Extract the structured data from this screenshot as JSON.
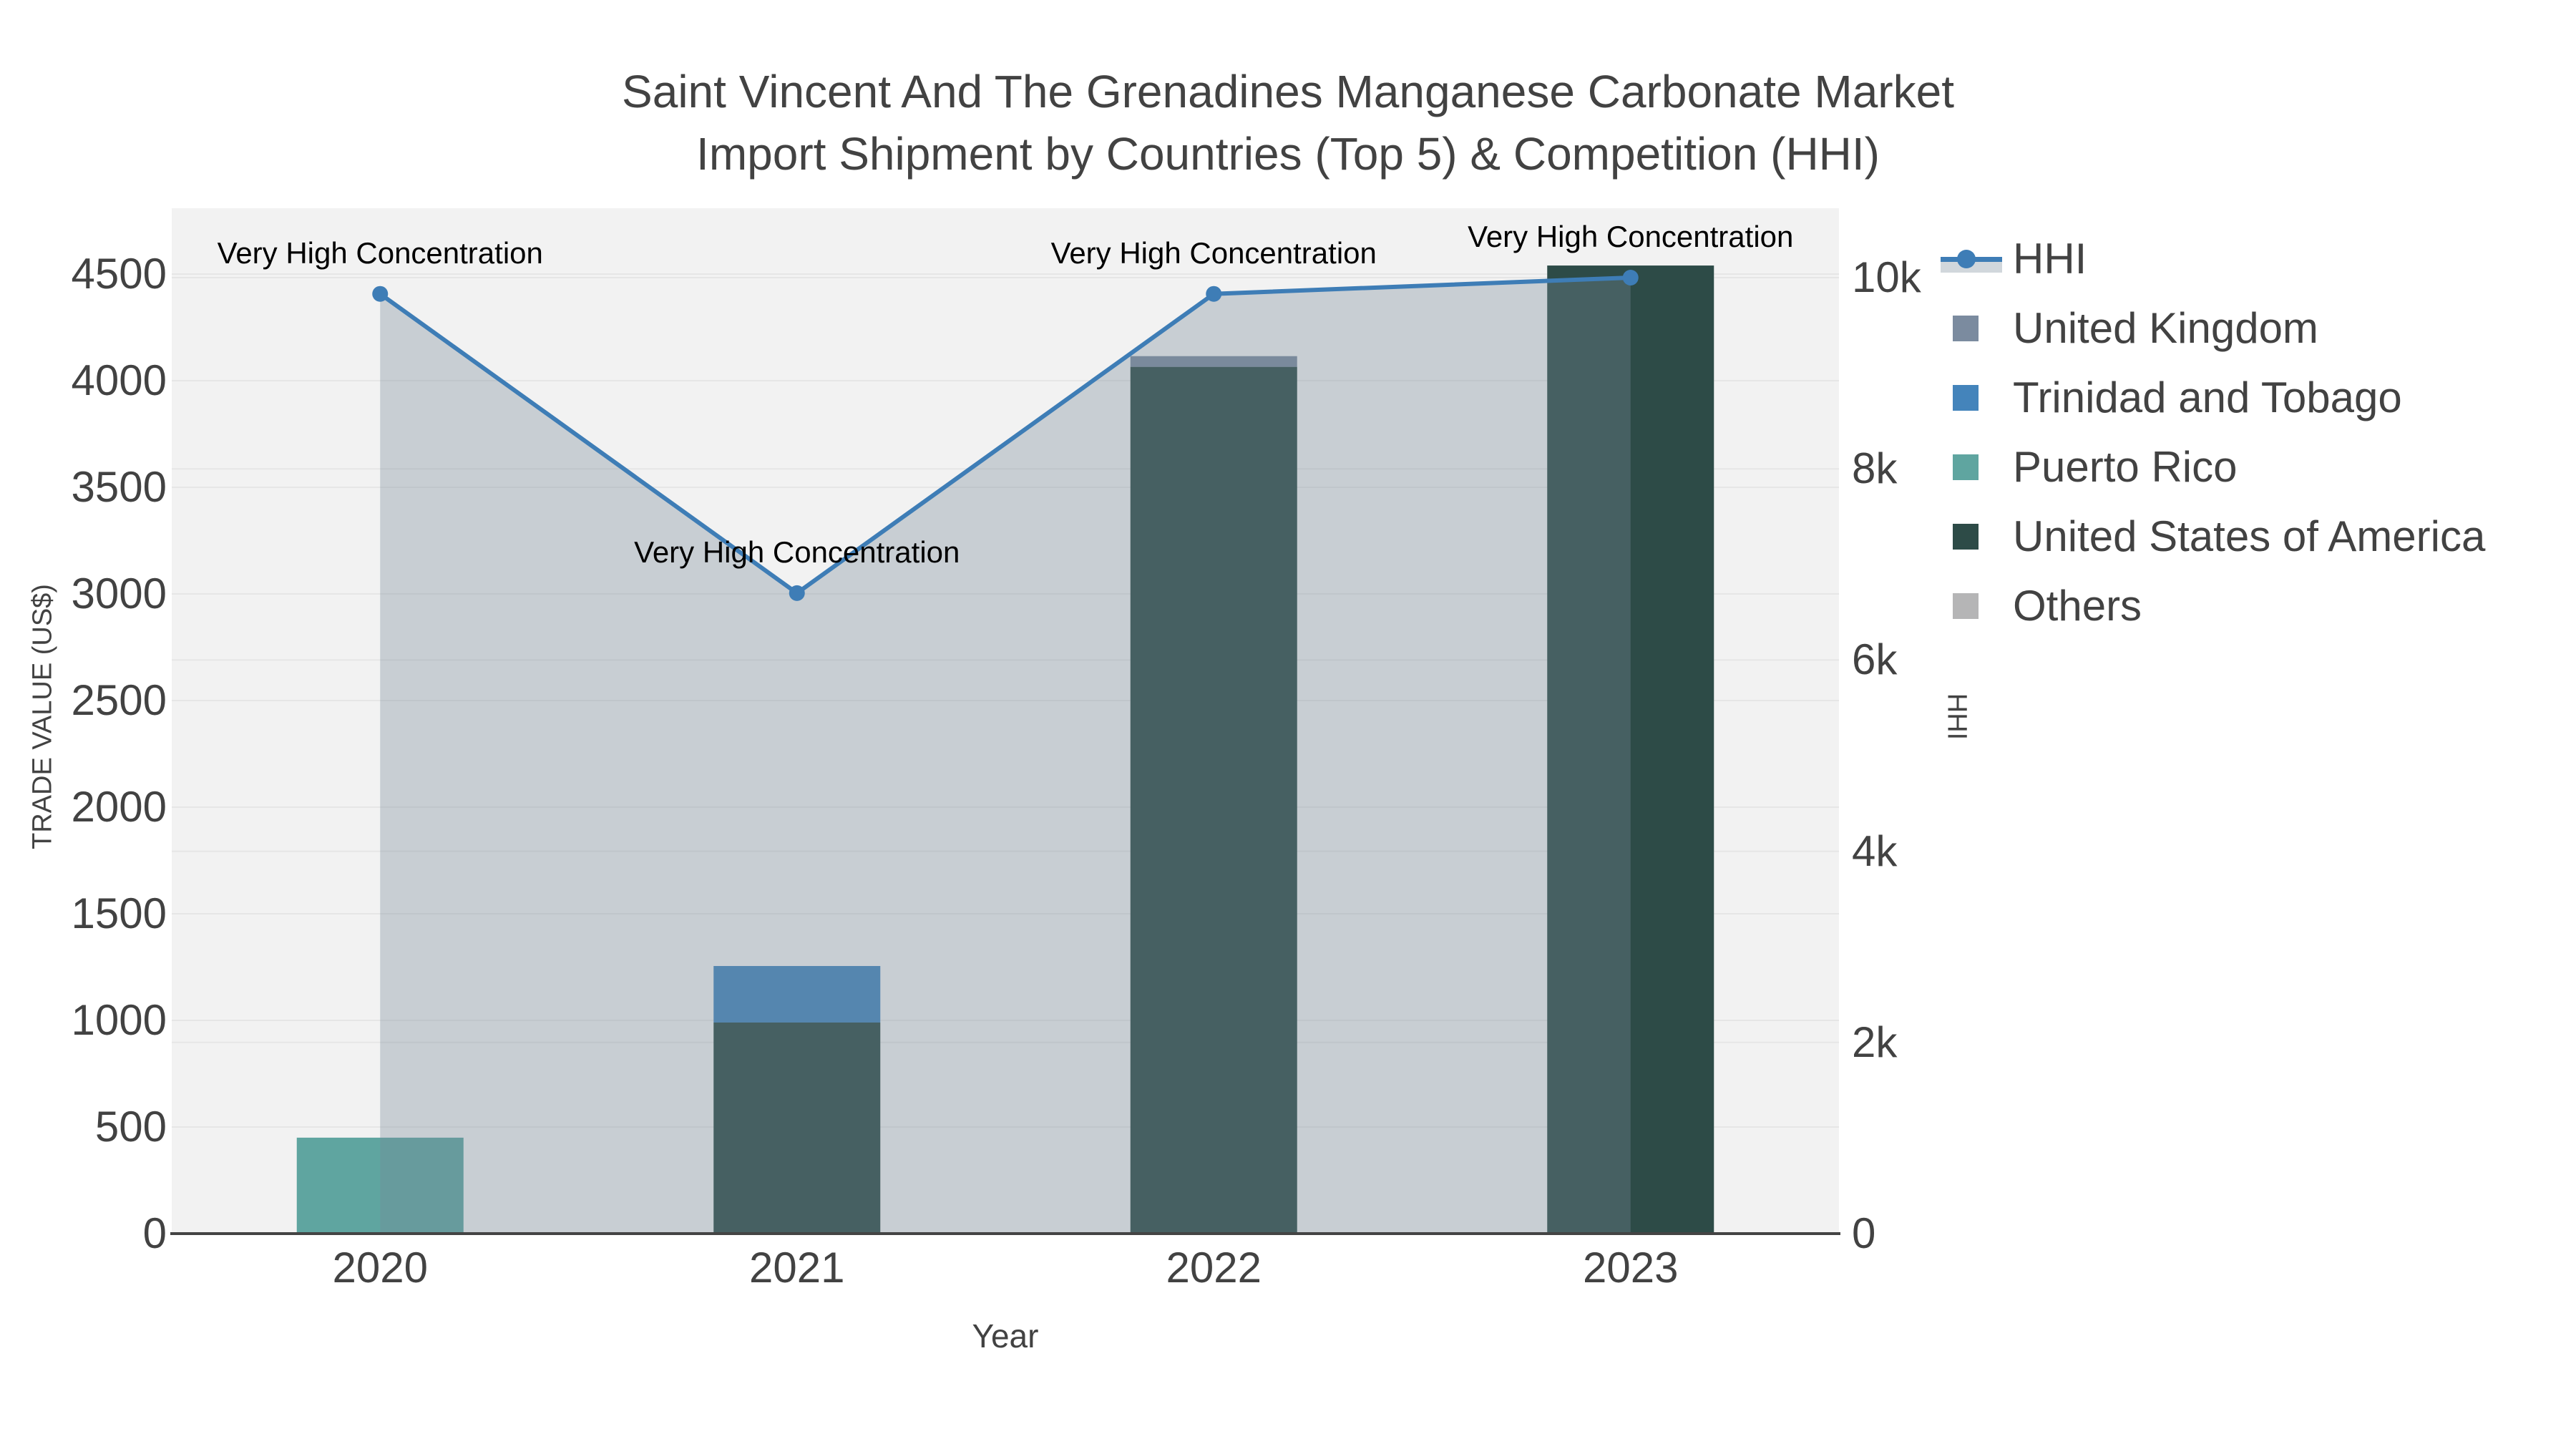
{
  "title": {
    "line1": "Saint Vincent And The Grenadines Manganese Carbonate Market",
    "line2": "Import Shipment by Countries (Top 5) & Competition (HHI)"
  },
  "axes": {
    "x": {
      "title": "Year",
      "tick_labels": [
        "2020",
        "2021",
        "2022",
        "2023"
      ]
    },
    "y_left": {
      "title": "TRADE VALUE (US$)",
      "tick_labels": [
        "0",
        "500",
        "1000",
        "1500",
        "2000",
        "2500",
        "3000",
        "3500",
        "4000",
        "4500"
      ],
      "tick_values": [
        0,
        500,
        1000,
        1500,
        2000,
        2500,
        3000,
        3500,
        4000,
        4500
      ],
      "range": [
        0,
        4500
      ]
    },
    "y_right": {
      "title": "HHI",
      "tick_labels": [
        "0",
        "2k",
        "4k",
        "6k",
        "8k",
        "10k"
      ],
      "tick_values": [
        0,
        2000,
        4000,
        6000,
        8000,
        10000
      ],
      "range": [
        0,
        10000
      ]
    }
  },
  "legend": {
    "items": [
      {
        "label": "HHI",
        "type": "line",
        "color": "#3e7db6"
      },
      {
        "label": "United Kingdom",
        "type": "bar",
        "color": "#7b8b9f"
      },
      {
        "label": "Trinidad and Tobago",
        "type": "bar",
        "color": "#4484bb"
      },
      {
        "label": "Puerto Rico",
        "type": "bar",
        "color": "#5fa5a0"
      },
      {
        "label": "United States of America",
        "type": "bar",
        "color": "#2d4b47"
      },
      {
        "label": "Others",
        "type": "bar",
        "color": "#b5b5b6"
      }
    ]
  },
  "annotations": [
    {
      "year": "2020",
      "text": "Very High Concentration"
    },
    {
      "year": "2021",
      "text": "Very High Concentration"
    },
    {
      "year": "2022",
      "text": "Very High Concentration"
    },
    {
      "year": "2023",
      "text": "Very High Concentration"
    }
  ],
  "chart_data": {
    "type": "bar",
    "subtype": "stacked-bars-with-line",
    "categories": [
      "2020",
      "2021",
      "2022",
      "2023"
    ],
    "series": [
      {
        "name": "United Kingdom",
        "axis": "left",
        "values": [
          0,
          0,
          50,
          0
        ],
        "color": "#7b8b9f"
      },
      {
        "name": "Trinidad and Tobago",
        "axis": "left",
        "values": [
          0,
          265,
          0,
          0
        ],
        "color": "#4484bb"
      },
      {
        "name": "Puerto Rico",
        "axis": "left",
        "values": [
          450,
          0,
          0,
          0
        ],
        "color": "#5fa5a0"
      },
      {
        "name": "United States of America",
        "axis": "left",
        "values": [
          0,
          990,
          4065,
          4540
        ],
        "color": "#2d4b47"
      },
      {
        "name": "Others",
        "axis": "left",
        "values": [
          0,
          0,
          0,
          0
        ],
        "color": "#b5b5b6"
      }
    ],
    "stack_order": [
      "United States of America",
      "Puerto Rico",
      "Trinidad and Tobago",
      "United Kingdom",
      "Others"
    ],
    "line_series": {
      "name": "HHI",
      "axis": "right",
      "values": [
        9830,
        6700,
        9830,
        10000
      ],
      "color": "#3e7db6",
      "area_fill": "rgba(120,139,152,0.34)"
    },
    "xlabel": "Year",
    "ylabel": "TRADE VALUE (US$)",
    "ylabel_right": "HHI",
    "ylim_left": [
      0,
      4500
    ],
    "ylim_right": [
      0,
      10000
    ],
    "grid": true,
    "legend_position": "right"
  },
  "colors": {
    "plot_bg": "#f2f2f2",
    "grid": "#e6e6e6",
    "axis_line": "#444444",
    "text": "#424242",
    "annotation_text": "#000000",
    "area_fill": "rgba(120,139,152,0.34)",
    "hhi_line": "#3e7db6"
  }
}
